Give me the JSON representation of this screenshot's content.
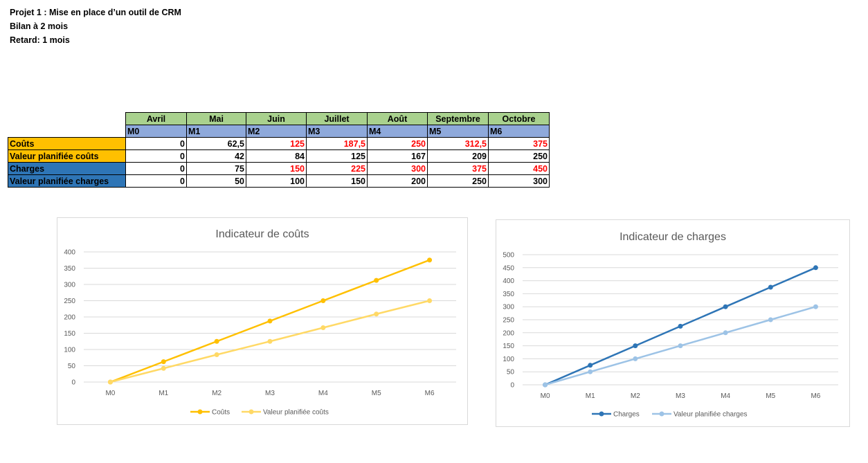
{
  "header": {
    "line1": "Projet 1 :  Mise en place d’un outil de CRM",
    "line2": "Bilan à 2 mois",
    "line3": "Retard: 1 mois"
  },
  "table": {
    "months": [
      "Avril",
      "Mai",
      "Juin",
      "Juillet",
      "Août",
      "Septembre",
      "Octobre"
    ],
    "codes": [
      "M0",
      "M1",
      "M2",
      "M3",
      "M4",
      "M5",
      "M6"
    ],
    "rows": [
      {
        "label": "Coûts",
        "values": [
          "0",
          "62,5",
          "125",
          "187,5",
          "250",
          "312,5",
          "375"
        ],
        "red": [
          false,
          false,
          true,
          true,
          true,
          true,
          true
        ],
        "label_color": "yellow"
      },
      {
        "label": "Valeur planifiée coûts",
        "values": [
          "0",
          "42",
          "84",
          "125",
          "167",
          "209",
          "250"
        ],
        "red": [
          false,
          false,
          false,
          false,
          false,
          false,
          false
        ],
        "label_color": "yellow"
      },
      {
        "label": "Charges",
        "values": [
          "0",
          "75",
          "150",
          "225",
          "300",
          "375",
          "450"
        ],
        "red": [
          false,
          false,
          true,
          true,
          true,
          true,
          true
        ],
        "label_color": "blue"
      },
      {
        "label": "Valeur planifiée charges",
        "values": [
          "0",
          "50",
          "100",
          "150",
          "200",
          "250",
          "300"
        ],
        "red": [
          false,
          false,
          false,
          false,
          false,
          false,
          false
        ],
        "label_color": "blue"
      }
    ]
  },
  "chart_data": [
    {
      "type": "line",
      "title": "Indicateur de coûts",
      "categories": [
        "M0",
        "M1",
        "M2",
        "M3",
        "M4",
        "M5",
        "M6"
      ],
      "ylim": [
        0,
        400
      ],
      "yticks": [
        0,
        50,
        100,
        150,
        200,
        250,
        300,
        350,
        400
      ],
      "grid": true,
      "legend": "bottom",
      "series": [
        {
          "name": "Coûts",
          "values": [
            0,
            62.5,
            125,
            187.5,
            250,
            312.5,
            375
          ],
          "color": "#ffc000"
        },
        {
          "name": "Valeur planifiée coûts",
          "values": [
            0,
            42,
            84,
            125,
            167,
            209,
            250
          ],
          "color": "#ffd966"
        }
      ]
    },
    {
      "type": "line",
      "title": "Indicateur de charges",
      "categories": [
        "M0",
        "M1",
        "M2",
        "M3",
        "M4",
        "M5",
        "M6"
      ],
      "ylim": [
        0,
        500
      ],
      "yticks": [
        0,
        50,
        100,
        150,
        200,
        250,
        300,
        350,
        400,
        450,
        500
      ],
      "grid": true,
      "legend": "bottom",
      "series": [
        {
          "name": "Charges",
          "values": [
            0,
            75,
            150,
            225,
            300,
            375,
            450
          ],
          "color": "#2e75b6"
        },
        {
          "name": "Valeur planifiée charges",
          "values": [
            0,
            50,
            100,
            150,
            200,
            250,
            300
          ],
          "color": "#9dc3e6"
        }
      ]
    }
  ]
}
